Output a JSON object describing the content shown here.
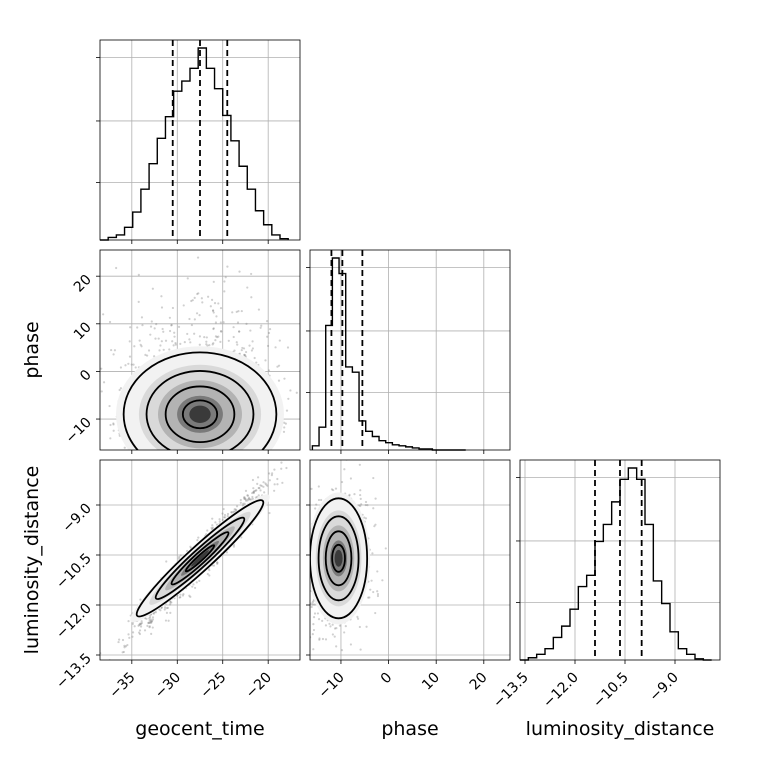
{
  "chart_data": {
    "type": "corner",
    "parameters": [
      "geocent_time",
      "phase",
      "luminosity_distance"
    ],
    "axis_labels": {
      "geocent_time": "geocent_time",
      "phase": "phase",
      "luminosity_distance": "luminosity_distance"
    },
    "ranges": {
      "geocent_time": [
        -38.5,
        -16.5
      ],
      "phase": [
        -16.5,
        25.5
      ],
      "luminosity_distance": [
        -13.65,
        -7.65
      ]
    },
    "ticks": {
      "geocent_time": {
        "values": [
          -35,
          -30,
          -25,
          -20
        ],
        "labels": [
          "−35",
          "−30",
          "−25",
          "−20"
        ]
      },
      "phase": {
        "values": [
          -10,
          0,
          10,
          20
        ],
        "labels": [
          "−10",
          "0",
          "10",
          "20"
        ]
      },
      "luminosity_distance": {
        "values": [
          -13.5,
          -12.0,
          -10.5,
          -9.0
        ],
        "labels": [
          "−13.5",
          "−12.0",
          "−10.5",
          "−9.0"
        ]
      }
    },
    "quantiles": {
      "geocent_time": [
        -30.5,
        -27.5,
        -24.5
      ],
      "phase": [
        -12,
        -9.7,
        -5.5
      ],
      "luminosity_distance": [
        -11.4,
        -10.65,
        -10.0
      ]
    },
    "histograms": {
      "geocent_time": {
        "edges": [
          -38.5,
          -37.6,
          -36.7,
          -35.8,
          -34.9,
          -34.0,
          -33.1,
          -32.2,
          -31.3,
          -30.4,
          -29.5,
          -28.6,
          -27.7,
          -26.8,
          -25.9,
          -25.0,
          -24.1,
          -23.2,
          -22.3,
          -21.4,
          -20.5,
          -19.6,
          -18.7,
          -17.8
        ],
        "counts": [
          0,
          2,
          4,
          10,
          22,
          40,
          60,
          80,
          97,
          117,
          125,
          135,
          151,
          135,
          119,
          98,
          78,
          58,
          40,
          23,
          12,
          4,
          1
        ]
      },
      "phase": {
        "edges": [
          -16,
          -14.6,
          -13.2,
          -11.8,
          -10.4,
          -9.0,
          -7.6,
          -6.2,
          -4.8,
          -3.4,
          -2.0,
          -0.6,
          0.8,
          2.2,
          3.6,
          5.0,
          6.4,
          7.8,
          9.2,
          10.6,
          12.0,
          13.4,
          14.8,
          16.2
        ],
        "counts": [
          4,
          22,
          120,
          185,
          170,
          80,
          75,
          28,
          18,
          13,
          9,
          7,
          5,
          4,
          3,
          2,
          1,
          1,
          0,
          0,
          0,
          0,
          0
        ]
      },
      "luminosity_distance": {
        "edges": [
          -13.65,
          -13.4,
          -13.15,
          -12.9,
          -12.65,
          -12.4,
          -12.15,
          -11.9,
          -11.65,
          -11.4,
          -11.15,
          -10.9,
          -10.65,
          -10.4,
          -10.15,
          -9.9,
          -9.65,
          -9.4,
          -9.15,
          -8.9,
          -8.65,
          -8.4,
          -8.15,
          -7.9
        ],
        "counts": [
          0,
          2,
          5,
          10,
          20,
          30,
          45,
          65,
          75,
          105,
          120,
          140,
          160,
          170,
          160,
          120,
          70,
          50,
          25,
          10,
          5,
          1,
          0
        ]
      }
    },
    "scatter_2d": [
      {
        "x": "geocent_time",
        "y": "phase",
        "x_center": -27.5,
        "y_center": -9,
        "x_sd": 4.2,
        "y_sd": 6.5,
        "correlation": 0.15,
        "levels": 4
      },
      {
        "x": "geocent_time",
        "y": "luminosity_distance",
        "x_center": -27.5,
        "y_center": -10.6,
        "x_sd": 3.2,
        "y_sd": 0.95,
        "correlation": 0.96,
        "levels": 4
      },
      {
        "x": "phase",
        "y": "luminosity_distance",
        "x_center": -10.5,
        "y_center": -10.6,
        "x_sd": 3.0,
        "y_sd": 0.9,
        "correlation": 0.05,
        "levels": 4
      }
    ]
  }
}
